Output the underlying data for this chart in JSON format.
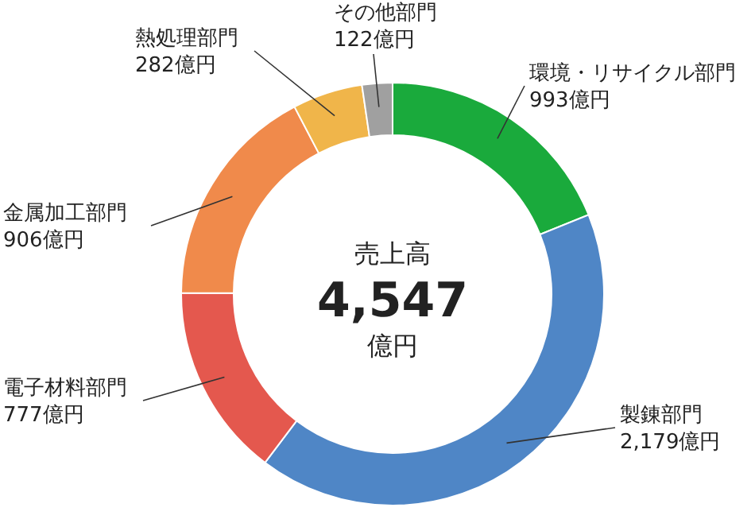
{
  "chart_data": {
    "type": "donut",
    "categories": [
      "環境・リサイクル部門",
      "製錬部門",
      "電子材料部門",
      "金属加工部門",
      "熱処理部門",
      "その他部門"
    ],
    "values": [
      993,
      2179,
      777,
      906,
      282,
      122
    ],
    "value_labels": [
      "993億円",
      "2,179億円",
      "777億円",
      "906億円",
      "282億円",
      "122億円"
    ],
    "colors": [
      "#1aaa3c",
      "#4f86c6",
      "#e4584e",
      "#f08a4b",
      "#f0b54a",
      "#a0a0a0"
    ],
    "annotations": [
      "売上高",
      "4,547",
      "億円"
    ]
  }
}
